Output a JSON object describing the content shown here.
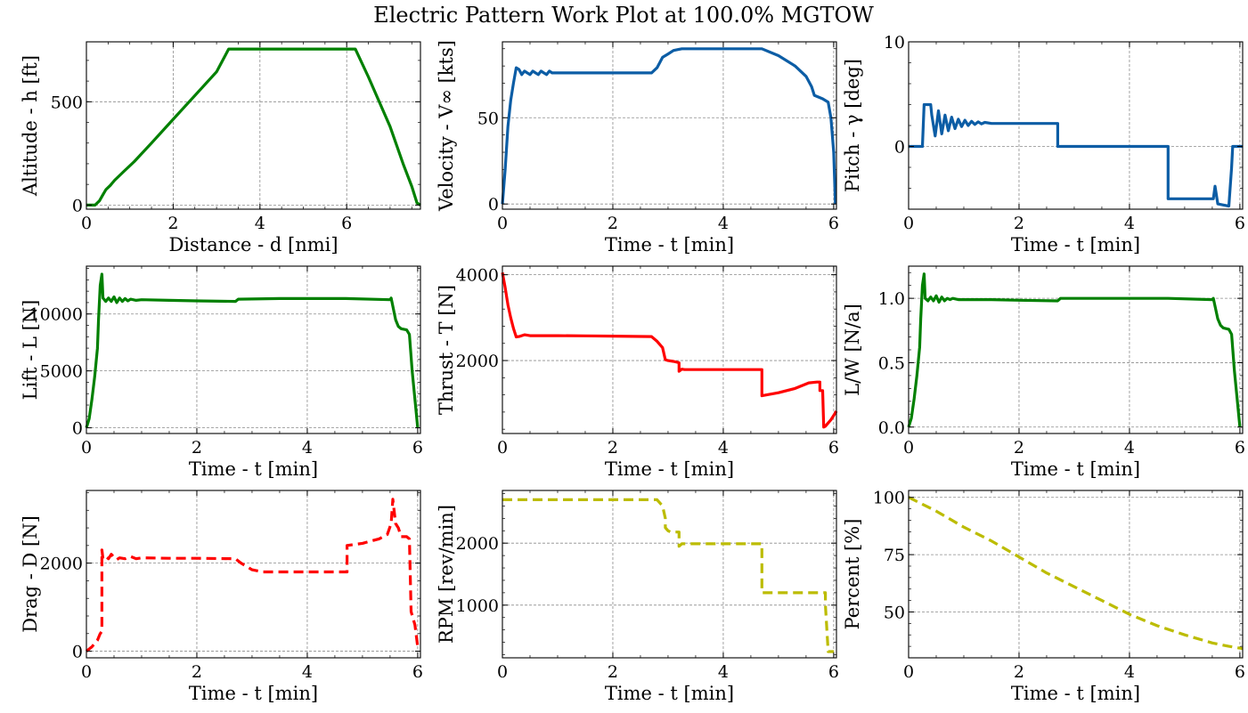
{
  "figure": {
    "title": "Electric Pattern Work Plot at 100.0% MGTOW"
  },
  "chart_data": [
    {
      "type": "line",
      "xlabel": "Distance - d [nmi]",
      "ylabel": "Altitude - h [ft]",
      "xlim": [
        0,
        7.7
      ],
      "ylim": [
        -20,
        790
      ],
      "xticks": [
        0,
        2,
        4,
        6
      ],
      "yticks": [
        0,
        500
      ],
      "grid": true,
      "series": [
        {
          "color": "#008000",
          "style": "solid",
          "x": [
            0,
            0.2,
            0.3,
            0.38,
            0.45,
            0.55,
            0.65,
            0.75,
            0.9,
            1.1,
            1.5,
            2.0,
            2.5,
            3.0,
            3.28,
            3.5,
            4.5,
            5.5,
            6.2,
            6.5,
            7.0,
            7.3,
            7.5,
            7.62,
            7.7
          ],
          "y": [
            0,
            0,
            20,
            50,
            75,
            95,
            120,
            140,
            170,
            210,
            300,
            415,
            530,
            645,
            755,
            755,
            755,
            755,
            755,
            620,
            380,
            200,
            90,
            10,
            0
          ]
        }
      ]
    },
    {
      "type": "line",
      "xlabel": "Time - t [min]",
      "ylabel": "Velocity - V∞ [kts]",
      "xlim": [
        0,
        6.05
      ],
      "ylim": [
        -3,
        94
      ],
      "xticks": [
        0,
        2,
        4,
        6
      ],
      "yticks": [
        0,
        50
      ],
      "grid": true,
      "series": [
        {
          "color": "#0c5da5",
          "style": "solid",
          "x": [
            0,
            0.05,
            0.1,
            0.15,
            0.2,
            0.25,
            0.3,
            0.35,
            0.4,
            0.45,
            0.5,
            0.55,
            0.6,
            0.65,
            0.7,
            0.75,
            0.8,
            0.85,
            0.9,
            0.95,
            1.0,
            1.1,
            1.3,
            2.0,
            2.7,
            2.8,
            2.9,
            3.0,
            3.1,
            3.25,
            3.5,
            4.0,
            4.7,
            5.0,
            5.3,
            5.5,
            5.6,
            5.65,
            5.8,
            5.9,
            5.95,
            6.0,
            6.03
          ],
          "y": [
            0,
            20,
            45,
            60,
            70,
            79,
            78,
            75,
            77,
            76,
            75,
            77,
            76,
            75,
            77,
            76,
            75,
            77,
            76,
            76,
            76,
            76,
            76,
            76,
            76,
            79,
            85,
            87,
            89,
            90,
            90,
            90,
            90,
            86,
            80,
            74,
            68,
            63,
            61,
            59,
            50,
            30,
            0
          ]
        }
      ]
    },
    {
      "type": "line",
      "xlabel": "Time - t [min]",
      "ylabel": "Pitch - γ [deg]",
      "xlim": [
        0,
        6.05
      ],
      "ylim": [
        -6,
        10
      ],
      "xticks": [
        0,
        2,
        4,
        6
      ],
      "yticks": [
        0,
        10
      ],
      "grid": true,
      "series": [
        {
          "color": "#0c5da5",
          "style": "solid",
          "x": [
            0,
            0.25,
            0.28,
            0.4,
            0.42,
            0.48,
            0.54,
            0.6,
            0.66,
            0.72,
            0.78,
            0.84,
            0.9,
            0.96,
            1.02,
            1.08,
            1.14,
            1.2,
            1.26,
            1.32,
            1.38,
            1.5,
            1.7,
            2.0,
            2.7,
            2.7,
            4.7,
            4.7,
            5.5,
            5.52,
            5.55,
            5.6,
            5.7,
            5.8,
            5.85,
            5.87,
            5.9,
            6.05
          ],
          "y": [
            0,
            0,
            4,
            4,
            3,
            1,
            3.4,
            1.2,
            3.0,
            1.5,
            2.8,
            1.7,
            2.6,
            1.9,
            2.5,
            2.0,
            2.4,
            2.1,
            2.35,
            2.15,
            2.3,
            2.2,
            2.2,
            2.2,
            2.2,
            0,
            0,
            -5,
            -5,
            -5,
            -3.8,
            -5.5,
            -5.6,
            -5.7,
            -2,
            0,
            0,
            0
          ]
        }
      ]
    },
    {
      "type": "line",
      "xlabel": "Time - t [min]",
      "ylabel": "Lift - L [N]",
      "xlim": [
        0,
        6.05
      ],
      "ylim": [
        -500,
        14200
      ],
      "xticks": [
        0,
        2,
        4,
        6
      ],
      "yticks": [
        0,
        5000,
        10000
      ],
      "grid": true,
      "series": [
        {
          "color": "#008000",
          "style": "solid",
          "x": [
            0,
            0.05,
            0.1,
            0.15,
            0.2,
            0.22,
            0.25,
            0.28,
            0.3,
            0.35,
            0.4,
            0.45,
            0.5,
            0.55,
            0.6,
            0.65,
            0.7,
            0.75,
            0.8,
            0.9,
            1.0,
            1.5,
            2.0,
            2.7,
            2.75,
            3.5,
            4.7,
            5.5,
            5.52,
            5.6,
            5.65,
            5.7,
            5.8,
            5.85,
            5.9,
            6.0
          ],
          "y": [
            0,
            800,
            2500,
            4500,
            7000,
            9500,
            12500,
            13500,
            11400,
            11100,
            11400,
            11100,
            11500,
            11000,
            11400,
            11100,
            11350,
            11150,
            11300,
            11200,
            11250,
            11200,
            11150,
            11100,
            11300,
            11350,
            11350,
            11250,
            11400,
            9500,
            8900,
            8700,
            8600,
            8200,
            5000,
            0
          ]
        }
      ]
    },
    {
      "type": "line",
      "xlabel": "Time - t [min]",
      "ylabel": "Thrust - T [N]",
      "xlim": [
        0,
        6.05
      ],
      "ylim": [
        300,
        4200
      ],
      "xticks": [
        0,
        2,
        4,
        6
      ],
      "yticks": [
        2000,
        4000
      ],
      "grid": true,
      "series": [
        {
          "color": "#ff0000",
          "style": "solid",
          "x": [
            0,
            0.05,
            0.1,
            0.15,
            0.2,
            0.25,
            0.3,
            0.4,
            0.5,
            1.0,
            1.5,
            2.0,
            2.7,
            2.8,
            2.9,
            2.95,
            3.0,
            3.1,
            3.2,
            3.2,
            3.25,
            3.3,
            3.5,
            4.0,
            4.7,
            4.7,
            5.0,
            5.3,
            5.55,
            5.7,
            5.75,
            5.75,
            5.8,
            5.82,
            5.85,
            5.95,
            6.05
          ],
          "y": [
            4050,
            3700,
            3300,
            3000,
            2750,
            2550,
            2560,
            2600,
            2580,
            2580,
            2575,
            2570,
            2560,
            2450,
            2300,
            2020,
            2000,
            1980,
            1950,
            1750,
            1800,
            1790,
            1790,
            1790,
            1790,
            1180,
            1250,
            1350,
            1480,
            1500,
            1500,
            1300,
            1300,
            450,
            470,
            620,
            820
          ]
        }
      ]
    },
    {
      "type": "line",
      "xlabel": "Time - t [min]",
      "ylabel": "L/W [N/a]",
      "xlim": [
        0,
        6.05
      ],
      "ylim": [
        -0.05,
        1.25
      ],
      "xticks": [
        0,
        2,
        4,
        6
      ],
      "yticks": [
        0.0,
        0.5,
        1.0
      ],
      "grid": true,
      "series": [
        {
          "color": "#008000",
          "style": "solid",
          "x": [
            0,
            0.05,
            0.1,
            0.15,
            0.2,
            0.22,
            0.25,
            0.28,
            0.3,
            0.35,
            0.4,
            0.45,
            0.5,
            0.55,
            0.6,
            0.65,
            0.7,
            0.75,
            0.8,
            0.9,
            1.0,
            1.5,
            2.0,
            2.7,
            2.75,
            3.5,
            4.7,
            5.5,
            5.52,
            5.6,
            5.65,
            5.7,
            5.8,
            5.85,
            5.9,
            6.0
          ],
          "y": [
            0,
            0.07,
            0.22,
            0.4,
            0.62,
            0.84,
            1.1,
            1.19,
            1.0,
            0.98,
            1.01,
            0.98,
            1.02,
            0.97,
            1.01,
            0.98,
            1.0,
            0.99,
            1.0,
            0.99,
            0.99,
            0.99,
            0.985,
            0.98,
            1.0,
            1.0,
            1.0,
            0.99,
            1.0,
            0.84,
            0.79,
            0.77,
            0.76,
            0.72,
            0.44,
            0
          ]
        }
      ]
    },
    {
      "type": "line",
      "xlabel": "Time - t [min]",
      "ylabel": "Drag - D [N]",
      "xlim": [
        0,
        6.05
      ],
      "ylim": [
        -150,
        3650
      ],
      "xticks": [
        0,
        2,
        4,
        6
      ],
      "yticks": [
        0,
        2000
      ],
      "grid": true,
      "series": [
        {
          "color": "#ff0000",
          "style": "dashed",
          "x": [
            0,
            0.1,
            0.2,
            0.25,
            0.28,
            0.28,
            0.3,
            0.35,
            0.4,
            0.45,
            0.5,
            0.55,
            0.6,
            0.7,
            0.8,
            0.9,
            1.0,
            1.5,
            2.0,
            2.7,
            2.8,
            3.0,
            3.2,
            3.5,
            4.0,
            4.7,
            4.72,
            4.72,
            5.0,
            5.3,
            5.45,
            5.52,
            5.55,
            5.6,
            5.65,
            5.7,
            5.8,
            5.85,
            5.88,
            5.95,
            6.0
          ],
          "y": [
            0,
            100,
            250,
            400,
            450,
            2300,
            2100,
            2150,
            2100,
            2200,
            2130,
            2080,
            2120,
            2100,
            2150,
            2100,
            2120,
            2110,
            2110,
            2100,
            2000,
            1850,
            1800,
            1800,
            1800,
            1800,
            1800,
            2400,
            2450,
            2550,
            2650,
            2900,
            3450,
            2900,
            2800,
            2600,
            2600,
            2550,
            900,
            600,
            100
          ]
        }
      ]
    },
    {
      "type": "line",
      "xlabel": "Time - t [min]",
      "ylabel": "RPM [rev/min]",
      "xlim": [
        0,
        6.05
      ],
      "ylim": [
        150,
        2850
      ],
      "xticks": [
        0,
        2,
        4,
        6
      ],
      "yticks": [
        1000,
        2000
      ],
      "grid": true,
      "series": [
        {
          "color": "#bcbc00",
          "style": "dashed",
          "x": [
            0,
            1.0,
            2.0,
            2.8,
            2.9,
            2.95,
            2.95,
            3.0,
            3.05,
            3.2,
            3.2,
            3.25,
            3.5,
            4.0,
            4.7,
            4.7,
            5.0,
            5.5,
            5.85,
            5.85,
            5.9,
            6.0
          ],
          "y": [
            2700,
            2700,
            2700,
            2700,
            2600,
            2400,
            2250,
            2200,
            2180,
            2180,
            1950,
            1990,
            1990,
            1990,
            1990,
            1200,
            1200,
            1200,
            1200,
            1000,
            250,
            250
          ]
        }
      ]
    },
    {
      "type": "line",
      "xlabel": "Time - t [min]",
      "ylabel": "Percent [%]",
      "xlim": [
        0,
        6.05
      ],
      "ylim": [
        30,
        103
      ],
      "xticks": [
        0,
        2,
        4,
        6
      ],
      "yticks": [
        50,
        75,
        100
      ],
      "grid": true,
      "series": [
        {
          "color": "#bcbc00",
          "style": "dashed",
          "x": [
            0,
            0.5,
            1.0,
            1.5,
            2.0,
            2.5,
            3.0,
            3.5,
            4.0,
            4.5,
            5.0,
            5.5,
            5.8,
            6.05
          ],
          "y": [
            100,
            94,
            87,
            81,
            74,
            67,
            61,
            55,
            49,
            44,
            40,
            36.5,
            35,
            34
          ]
        }
      ]
    }
  ]
}
